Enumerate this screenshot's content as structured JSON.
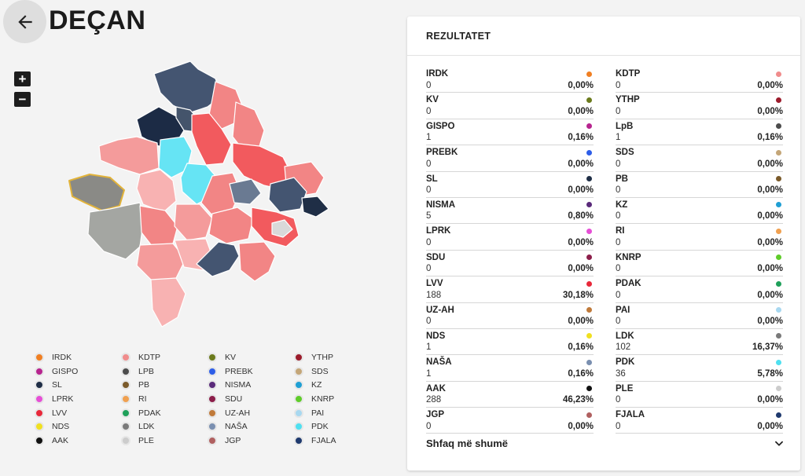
{
  "header": {
    "title": "DEÇAN"
  },
  "icons": {
    "back": "arrow-left-icon",
    "zoom_in": "plus",
    "zoom_out": "minus",
    "expand": "chevron-down-icon"
  },
  "zoom": {
    "in_label": "+",
    "out_label": "−"
  },
  "legend": [
    {
      "label": "IRDK",
      "color": "#f07f22"
    },
    {
      "label": "KDTP",
      "color": "#f08c8c"
    },
    {
      "label": "KV",
      "color": "#6b7a1c"
    },
    {
      "label": "YTHP",
      "color": "#9b1b2b"
    },
    {
      "label": "GISPO",
      "color": "#b7248f"
    },
    {
      "label": "LPB",
      "color": "#4c4c4c"
    },
    {
      "label": "PREBK",
      "color": "#2e5ee8"
    },
    {
      "label": "SDS",
      "color": "#c4a678"
    },
    {
      "label": "SL",
      "color": "#1f2e46"
    },
    {
      "label": "PB",
      "color": "#7a5a2a"
    },
    {
      "label": "NISMA",
      "color": "#5a2a7a"
    },
    {
      "label": "KZ",
      "color": "#1f9fd4"
    },
    {
      "label": "LPRK",
      "color": "#e64fd6"
    },
    {
      "label": "RI",
      "color": "#f0a050"
    },
    {
      "label": "SDU",
      "color": "#8c1e4a"
    },
    {
      "label": "KNRP",
      "color": "#5fcc2a"
    },
    {
      "label": "LVV",
      "color": "#e8283a"
    },
    {
      "label": "PDAK",
      "color": "#1fa05a"
    },
    {
      "label": "UZ-AH",
      "color": "#c07a3a"
    },
    {
      "label": "PAI",
      "color": "#a8d8f0"
    },
    {
      "label": "NDS",
      "color": "#f0e020"
    },
    {
      "label": "LDK",
      "color": "#7a7a7a"
    },
    {
      "label": "NAŠA",
      "color": "#7a8fb0"
    },
    {
      "label": "PDK",
      "color": "#4fe0f0"
    },
    {
      "label": "AAK",
      "color": "#111111"
    },
    {
      "label": "PLE",
      "color": "#cccccc"
    },
    {
      "label": "JGP",
      "color": "#b06060"
    },
    {
      "label": "FJALA",
      "color": "#1f3a6e"
    }
  ],
  "panel": {
    "title": "REZULTATET",
    "results": [
      {
        "party": "IRDK",
        "votes": "0",
        "percent": "0,00%",
        "color": "#f07f22"
      },
      {
        "party": "KDTP",
        "votes": "0",
        "percent": "0,00%",
        "color": "#f08c8c"
      },
      {
        "party": "KV",
        "votes": "0",
        "percent": "0,00%",
        "color": "#6b7a1c"
      },
      {
        "party": "YTHP",
        "votes": "0",
        "percent": "0,00%",
        "color": "#9b1b2b"
      },
      {
        "party": "GISPO",
        "votes": "1",
        "percent": "0,16%",
        "color": "#b7248f"
      },
      {
        "party": "LpB",
        "votes": "1",
        "percent": "0,16%",
        "color": "#4c4c4c"
      },
      {
        "party": "PREBK",
        "votes": "0",
        "percent": "0,00%",
        "color": "#2e5ee8"
      },
      {
        "party": "SDS",
        "votes": "0",
        "percent": "0,00%",
        "color": "#c4a678"
      },
      {
        "party": "SL",
        "votes": "0",
        "percent": "0,00%",
        "color": "#1f2e46"
      },
      {
        "party": "PB",
        "votes": "0",
        "percent": "0,00%",
        "color": "#7a5a2a"
      },
      {
        "party": "NISMA",
        "votes": "5",
        "percent": "0,80%",
        "color": "#5a2a7a"
      },
      {
        "party": "KZ",
        "votes": "0",
        "percent": "0,00%",
        "color": "#1f9fd4"
      },
      {
        "party": "LPRK",
        "votes": "0",
        "percent": "0,00%",
        "color": "#e64fd6"
      },
      {
        "party": "RI",
        "votes": "0",
        "percent": "0,00%",
        "color": "#f0a050"
      },
      {
        "party": "SDU",
        "votes": "0",
        "percent": "0,00%",
        "color": "#8c1e4a"
      },
      {
        "party": "KNRP",
        "votes": "0",
        "percent": "0,00%",
        "color": "#5fcc2a"
      },
      {
        "party": "LVV",
        "votes": "188",
        "percent": "30,18%",
        "color": "#e8283a"
      },
      {
        "party": "PDAK",
        "votes": "0",
        "percent": "0,00%",
        "color": "#1fa05a"
      },
      {
        "party": "UZ-AH",
        "votes": "0",
        "percent": "0,00%",
        "color": "#c07a3a"
      },
      {
        "party": "PAI",
        "votes": "0",
        "percent": "0,00%",
        "color": "#a8d8f0"
      },
      {
        "party": "NDS",
        "votes": "1",
        "percent": "0,16%",
        "color": "#f0e020"
      },
      {
        "party": "LDK",
        "votes": "102",
        "percent": "16,37%",
        "color": "#7a7a7a"
      },
      {
        "party": "NAŠA",
        "votes": "1",
        "percent": "0,16%",
        "color": "#7a8fb0"
      },
      {
        "party": "PDK",
        "votes": "36",
        "percent": "5,78%",
        "color": "#4fe0f0"
      },
      {
        "party": "AAK",
        "votes": "288",
        "percent": "46,23%",
        "color": "#111111"
      },
      {
        "party": "PLE",
        "votes": "0",
        "percent": "0,00%",
        "color": "#cccccc"
      },
      {
        "party": "JGP",
        "votes": "0",
        "percent": "0,00%",
        "color": "#b06060"
      },
      {
        "party": "FJALA",
        "votes": "0",
        "percent": "0,00%",
        "color": "#1f3a6e"
      }
    ],
    "show_more_label": "Shfaq më shumë"
  }
}
